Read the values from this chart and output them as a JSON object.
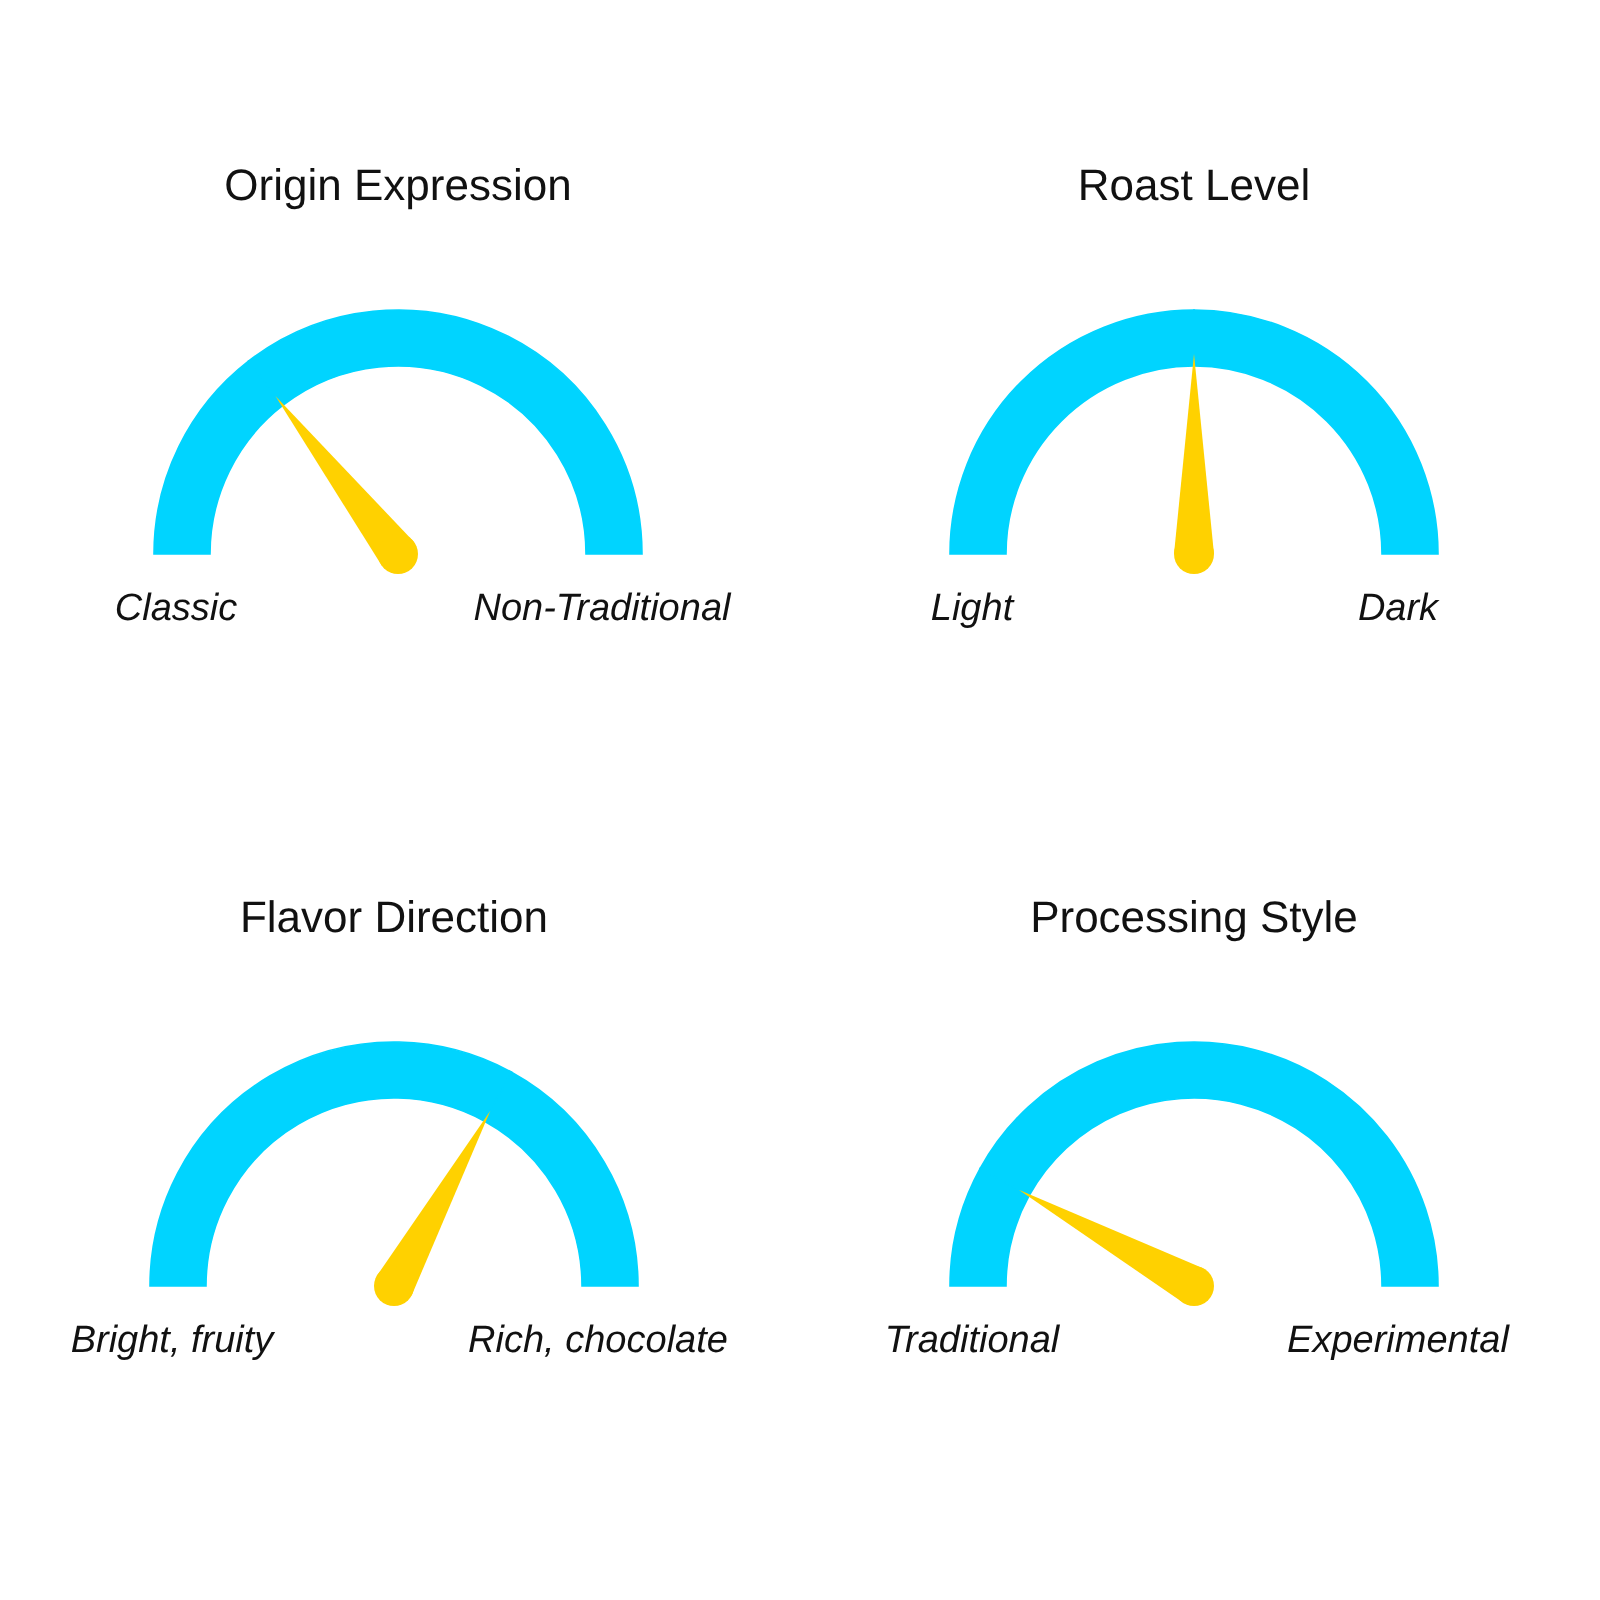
{
  "chart_data": [
    {
      "type": "donut",
      "title": "Origin Expression",
      "categories": [
        null,
        null
      ],
      "values": [
        29,
        71
      ],
      "colors": [
        "#00d4ff",
        "#00d4ff"
      ],
      "annotations": [
        "Classic",
        "Non-Traditional"
      ]
    },
    {
      "type": "donut",
      "title": "Roast Level",
      "categories": [
        null,
        null
      ],
      "values": [
        50,
        50
      ],
      "colors": [
        "#00d4ff",
        "#00d4ff"
      ],
      "annotations": [
        "Light",
        "Dark"
      ]
    },
    {
      "type": "donut",
      "title": "Flavor Direction",
      "categories": [
        null,
        null
      ],
      "values": [
        66,
        34
      ],
      "colors": [
        "#00d4ff",
        "#00d4ff"
      ],
      "annotations": [
        "Bright, fruity",
        "Rich, chocolate"
      ]
    },
    {
      "type": "donut",
      "title": "Processing Style",
      "categories": [
        null,
        null
      ],
      "values": [
        16,
        84
      ],
      "colors": [
        "#00d4ff",
        "#00d4ff"
      ],
      "annotations": [
        "Traditional",
        "Experimental"
      ]
    }
  ]
}
